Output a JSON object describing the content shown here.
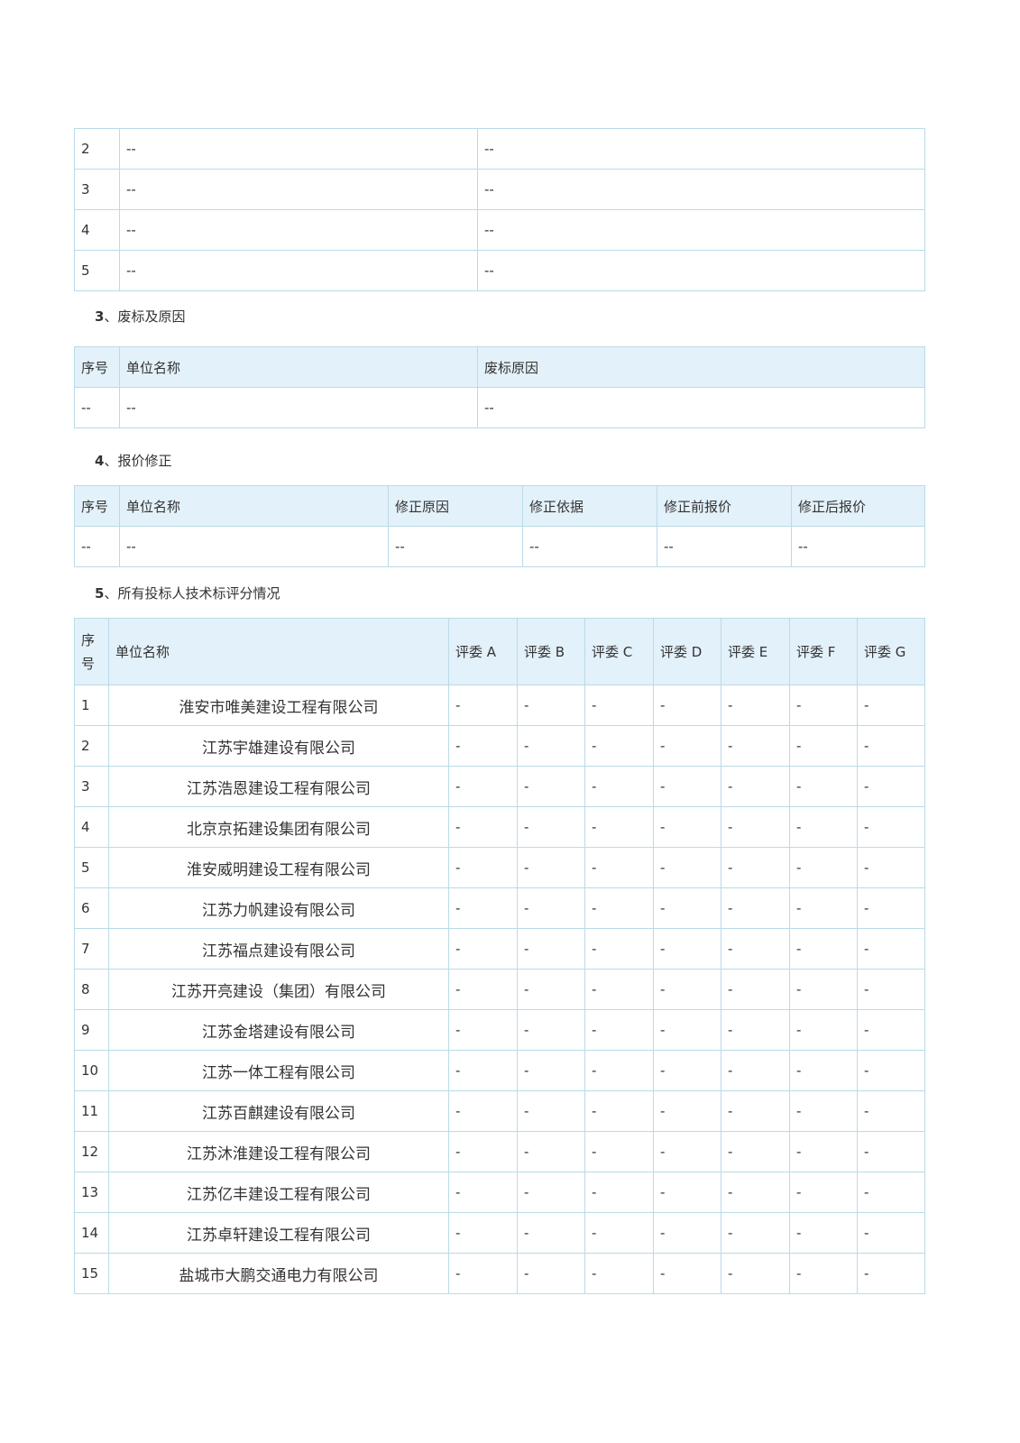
{
  "table_continued": {
    "rows": [
      [
        "2",
        "--",
        "--"
      ],
      [
        "3",
        "--",
        "--"
      ],
      [
        "4",
        "--",
        "--"
      ],
      [
        "5",
        "--",
        "--"
      ]
    ]
  },
  "section3": {
    "num": "3",
    "title": "、废标及原因",
    "headers": [
      "序号",
      "单位名称",
      "废标原因"
    ],
    "rows": [
      [
        "--",
        "--",
        "--"
      ]
    ]
  },
  "section4": {
    "num": "4",
    "title": "、报价修正",
    "headers": [
      "序号",
      "单位名称",
      "修正原因",
      "修正依据",
      "修正前报价",
      "修正后报价"
    ],
    "rows": [
      [
        "--",
        "--",
        "--",
        "--",
        "--",
        "--"
      ]
    ]
  },
  "section5": {
    "num": "5",
    "title": "、所有投标人技术标评分情况",
    "headers": [
      "序号",
      "单位名称",
      "评委 A",
      "评委 B",
      "评委 C",
      "评委 D",
      "评委 E",
      "评委 F",
      "评委 G"
    ],
    "rows": [
      [
        "1",
        "淮安市唯美建设工程有限公司",
        "-",
        "-",
        "-",
        "-",
        "-",
        "-",
        "-"
      ],
      [
        "2",
        "江苏宇雄建设有限公司",
        "-",
        "-",
        "-",
        "-",
        "-",
        "-",
        "-"
      ],
      [
        "3",
        "江苏浩恩建设工程有限公司",
        "-",
        "-",
        "-",
        "-",
        "-",
        "-",
        "-"
      ],
      [
        "4",
        "北京京拓建设集团有限公司",
        "-",
        "-",
        "-",
        "-",
        "-",
        "-",
        "-"
      ],
      [
        "5",
        "淮安威明建设工程有限公司",
        "-",
        "-",
        "-",
        "-",
        "-",
        "-",
        "-"
      ],
      [
        "6",
        "江苏力帆建设有限公司",
        "-",
        "-",
        "-",
        "-",
        "-",
        "-",
        "-"
      ],
      [
        "7",
        "江苏福点建设有限公司",
        "-",
        "-",
        "-",
        "-",
        "-",
        "-",
        "-"
      ],
      [
        "8",
        "江苏开亮建设（集团）有限公司",
        "-",
        "-",
        "-",
        "-",
        "-",
        "-",
        "-"
      ],
      [
        "9",
        "江苏金塔建设有限公司",
        "-",
        "-",
        "-",
        "-",
        "-",
        "-",
        "-"
      ],
      [
        "10",
        "江苏一体工程有限公司",
        "-",
        "-",
        "-",
        "-",
        "-",
        "-",
        "-"
      ],
      [
        "11",
        "江苏百麒建设有限公司",
        "-",
        "-",
        "-",
        "-",
        "-",
        "-",
        "-"
      ],
      [
        "12",
        "江苏沐淮建设工程有限公司",
        "-",
        "-",
        "-",
        "-",
        "-",
        "-",
        "-"
      ],
      [
        "13",
        "江苏亿丰建设工程有限公司",
        "-",
        "-",
        "-",
        "-",
        "-",
        "-",
        "-"
      ],
      [
        "14",
        "江苏卓轩建设工程有限公司",
        "-",
        "-",
        "-",
        "-",
        "-",
        "-",
        "-"
      ],
      [
        "15",
        "盐城市大鹏交通电力有限公司",
        "-",
        "-",
        "-",
        "-",
        "-",
        "-",
        "-"
      ]
    ]
  }
}
